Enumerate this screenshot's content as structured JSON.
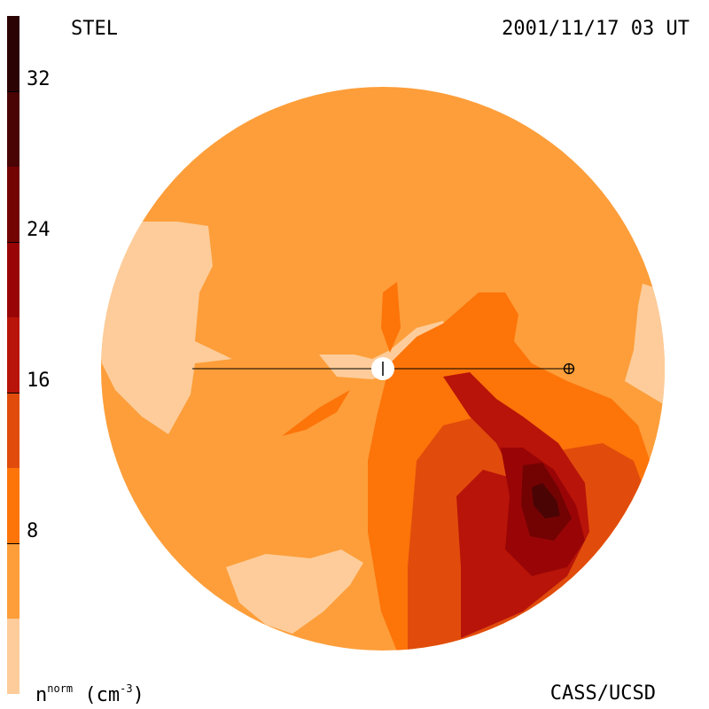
{
  "header": {
    "instrument": "STEL",
    "timestamp": "2001/11/17 03 UT"
  },
  "footer": {
    "credit": "CASS/UCSD",
    "unit_main": "n",
    "unit_sup": "norm",
    "unit_rest": " (cm",
    "unit_exp": "-3",
    "unit_close": ")"
  },
  "colorbar": {
    "range": [
      0,
      36
    ],
    "ticks": [
      "8",
      "16",
      "24",
      "32"
    ],
    "tick_values": [
      8,
      16,
      24,
      32
    ],
    "levels": [
      {
        "from": 0,
        "to": 4,
        "color": "#fdcc9a"
      },
      {
        "from": 4,
        "to": 8,
        "color": "#fd9e3a"
      },
      {
        "from": 8,
        "to": 12,
        "color": "#fd7409"
      },
      {
        "from": 12,
        "to": 16,
        "color": "#e14c0c"
      },
      {
        "from": 16,
        "to": 20,
        "color": "#b81409"
      },
      {
        "from": 20,
        "to": 24,
        "color": "#990506"
      },
      {
        "from": 24,
        "to": 28,
        "color": "#730303"
      },
      {
        "from": 28,
        "to": 32,
        "color": "#4a0404"
      },
      {
        "from": 32,
        "to": 36,
        "color": "#2c0303"
      }
    ]
  },
  "map": {
    "background_color": "#fd9e3a",
    "sun_color": "#ffffff",
    "earth_symbol": "earth-symbol"
  }
}
